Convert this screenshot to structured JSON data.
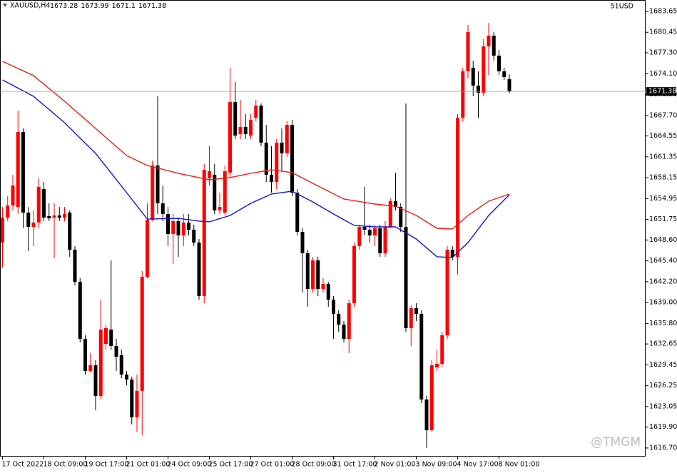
{
  "chart_data": {
    "type": "candlestick",
    "symbol": "XAUUSD,H4",
    "header_right": "51USD",
    "watermark": "@TMGM",
    "bull_color": "#ff0000",
    "bear_color": "#000000",
    "ylim": [
      1615.38,
      1685.4
    ],
    "yticks": [
      1683.65,
      1680.45,
      {
        "value": 1677.3,
        "label": "1677.30"
      },
      {
        "value": 1674.1,
        "label": "1674.10"
      },
      {
        "value": 1670.9,
        "label": "1670.90"
      },
      {
        "value": 1667.7,
        "label": "1667.70"
      },
      1664.55,
      1661.35,
      1658.15,
      1654.95,
      1651.75,
      {
        "value": 1648.6,
        "label": "1648.60"
      },
      {
        "value": 1645.4,
        "label": "1645.40"
      },
      {
        "value": 1642.2,
        "label": "1642.20"
      },
      {
        "value": 1639,
        "label": "1639.00"
      },
      {
        "value": 1635.8,
        "label": "1635.80"
      },
      1632.65,
      1629.45,
      1626.25,
      1623.05,
      {
        "value": 1619.9,
        "label": "1619.90"
      },
      {
        "value": 1616.7,
        "label": "1616.70"
      }
    ],
    "xticks": [
      {
        "value": 0,
        "label": "17 Oct 2022"
      },
      {
        "value": 8,
        "label": "18 Oct 09:00"
      },
      {
        "value": 16,
        "label": "19 Oct 17:00"
      },
      {
        "value": 24,
        "label": "21 Oct 01:00"
      },
      {
        "value": 32,
        "label": "24 Oct 09:00"
      },
      {
        "value": 40,
        "label": "25 Oct 17:00"
      },
      {
        "value": 48,
        "label": "27 Oct 01:00"
      },
      {
        "value": 56,
        "label": "28 Oct 09:00"
      },
      {
        "value": 64,
        "label": "31 Oct 17:00"
      },
      {
        "value": 72,
        "label": "2 Nov 01:00"
      },
      {
        "value": 80,
        "label": "3 Nov 09:00"
      },
      {
        "value": 88,
        "label": "4 Nov 17:00"
      },
      {
        "value": 96,
        "label": "8 Nov 01:00"
      }
    ],
    "open": [
      1648.2,
      1652.03,
      1653.89,
      1653.67,
      1665.16,
      1652.8,
      1650.61,
      1651.27,
      1656.41,
      1652.25,
      1652.03,
      1652.36,
      1652.03,
      1652.8,
      1647.11,
      1642.19,
      1633.43,
      1628.51,
      1629.39,
      1624.68,
      1632.67,
      1634.86,
      1632.34,
      1630.92,
      1627.96,
      1627.2,
      1621.4,
      1625.45,
      1642.95,
      1651.7,
      1660.02,
      1654.22,
      1652.58,
      1649.52,
      1651.49,
      1649.3,
      1651.27,
      1650.17,
      1648.2,
      1640.0,
      1658.05,
      1658.6,
      1653.13,
      1652.8,
      1658.93,
      1669.76,
      1664.83,
      1665.93,
      1664.61,
      1667.35,
      1669.21,
      1663.52,
      1658.6,
      1657.5,
      1663.52,
      1661.88,
      1666.25,
      1655.86,
      1649.84,
      1646.56,
      1641.09,
      1645.47,
      1641.09,
      1641.86,
      1639.45,
      1637.26,
      1635.62,
      1633.43,
      1638.9,
      1647.66,
      1650.61,
      1650.17,
      1649.3,
      1650.39,
      1646.56,
      1650.61,
      1654.55,
      1653.67,
      1650.61,
      1635.08,
      1638.14,
      1637.26,
      1624.14,
      1619.43,
      1629.06,
      1629.61,
      1633.98,
      1647.11,
      1646.02,
      1667.35,
      1674.46,
      1675.01,
      1672.27,
      1671.18,
      1678.29,
      1679.93,
      1676.87,
      1674.46,
      1673.28
    ],
    "high": [
      1653.67,
      1655.31,
      1658.6,
      1668.44,
      1665.71,
      1653.67,
      1653.13,
      1658.05,
      1657.5,
      1654.22,
      1654.22,
      1653.67,
      1653.67,
      1653.13,
      1647.66,
      1642.73,
      1633.98,
      1631.25,
      1630.15,
      1639.45,
      1635.62,
      1645.47,
      1633.43,
      1631.79,
      1628.51,
      1627.64,
      1627.96,
      1643.83,
      1654.22,
      1660.78,
      1670.63,
      1656.96,
      1653.67,
      1652.58,
      1652.03,
      1652.58,
      1652.58,
      1650.94,
      1648.75,
      1660.24,
      1662.97,
      1660.24,
      1655.86,
      1660.02,
      1675.01,
      1672.82,
      1670.08,
      1667.9,
      1667.9,
      1670.08,
      1669.54,
      1666.25,
      1662.97,
      1664.07,
      1665.71,
      1666.8,
      1667.02,
      1656.41,
      1650.39,
      1647.11,
      1646.02,
      1646.02,
      1642.73,
      1642.19,
      1640.0,
      1637.81,
      1636.17,
      1639.45,
      1648.2,
      1650.94,
      1656.74,
      1650.94,
      1650.94,
      1650.94,
      1651.49,
      1654.99,
      1658.93,
      1654.22,
      1669.54,
      1638.58,
      1638.9,
      1637.81,
      1624.68,
      1630.15,
      1631.79,
      1634.53,
      1647.66,
      1647.66,
      1667.9,
      1675.01,
      1681.57,
      1676.1,
      1674.46,
      1679.38,
      1681.9,
      1680.48,
      1677.74,
      1675.01,
      1673.99
    ],
    "low": [
      1644.37,
      1651.49,
      1653.13,
      1652.58,
      1650.39,
      1646.89,
      1647.66,
      1650.39,
      1651.49,
      1651.49,
      1645.8,
      1651.49,
      1651.49,
      1646.02,
      1641.64,
      1632.89,
      1627.96,
      1628.29,
      1622.49,
      1624.14,
      1631.79,
      1631.79,
      1628.51,
      1627.42,
      1626.32,
      1620.31,
      1619.21,
      1618.67,
      1642.73,
      1651.49,
      1652.58,
      1651.49,
      1647.66,
      1644.92,
      1646.02,
      1647.66,
      1649.3,
      1647.66,
      1639.45,
      1638.9,
      1656.96,
      1652.58,
      1652.58,
      1652.36,
      1658.05,
      1664.07,
      1664.07,
      1664.07,
      1664.07,
      1666.8,
      1662.97,
      1657.5,
      1655.86,
      1656.41,
      1659.14,
      1661.33,
      1655.31,
      1649.3,
      1640.55,
      1638.36,
      1640.55,
      1640.0,
      1640.55,
      1638.36,
      1633.43,
      1634.53,
      1632.89,
      1631.25,
      1638.36,
      1647.11,
      1649.3,
      1648.2,
      1647.66,
      1646.02,
      1646.02,
      1650.39,
      1653.13,
      1649.84,
      1634.53,
      1632.34,
      1636.17,
      1623.59,
      1616.7,
      1619.21,
      1628.51,
      1629.06,
      1633.43,
      1645.47,
      1643.28,
      1666.8,
      1673.37,
      1670.63,
      1667.35,
      1670.63,
      1673.91,
      1676.1,
      1673.91,
      1673.15,
      1671.1
    ],
    "close": [
      1652.03,
      1653.89,
      1656.96,
      1665.16,
      1652.8,
      1650.61,
      1651.27,
      1656.74,
      1652.03,
      1651.92,
      1652.36,
      1652.03,
      1652.58,
      1647.11,
      1642.19,
      1633.43,
      1628.51,
      1629.39,
      1624.68,
      1634.86,
      1635.08,
      1632.34,
      1630.7,
      1627.96,
      1627.2,
      1621.4,
      1625.45,
      1642.95,
      1651.7,
      1660.02,
      1654.22,
      1652.58,
      1649.52,
      1651.49,
      1649.3,
      1651.27,
      1650.17,
      1648.2,
      1640.0,
      1659.36,
      1659.14,
      1653.13,
      1653.67,
      1659.14,
      1669.76,
      1664.61,
      1665.93,
      1664.83,
      1667.02,
      1669.21,
      1663.52,
      1658.6,
      1657.5,
      1663.52,
      1661.88,
      1666.25,
      1655.86,
      1649.84,
      1646.56,
      1641.09,
      1645.47,
      1641.09,
      1641.86,
      1639.45,
      1637.26,
      1635.62,
      1633.43,
      1638.9,
      1647.66,
      1650.61,
      1650.17,
      1649.3,
      1650.39,
      1646.56,
      1650.61,
      1654.55,
      1653.67,
      1650.61,
      1635.08,
      1638.14,
      1637.26,
      1624.14,
      1619.43,
      1629.39,
      1629.61,
      1633.98,
      1647.11,
      1646.02,
      1667.35,
      1674.46,
      1680.48,
      1672.27,
      1671.18,
      1678.29,
      1679.93,
      1676.87,
      1674.46,
      1673.58,
      1671.38
    ],
    "series": [
      {
        "color": "#e8201a",
        "x": [
          0,
          6,
          12,
          18,
          24,
          28,
          34,
          40,
          44,
          48,
          52,
          56,
          60,
          66,
          72,
          76,
          80,
          84,
          87,
          90,
          94,
          98
        ],
        "values": [
          1675.99,
          1673.8,
          1669.87,
          1665.71,
          1661.55,
          1660.02,
          1658.82,
          1657.83,
          1658.16,
          1658.82,
          1659.36,
          1658.93,
          1657.28,
          1654.88,
          1654.11,
          1653.78,
          1652.36,
          1650.39,
          1650.28,
          1652.36,
          1654.55,
          1655.64
        ]
      },
      {
        "color": "#1414c8",
        "x": [
          0,
          6,
          12,
          18,
          24,
          28,
          34,
          38,
          40,
          44,
          48,
          52,
          56,
          60,
          64,
          68,
          72,
          76,
          80,
          84,
          87,
          90,
          94,
          98
        ],
        "values": [
          1673.15,
          1670.63,
          1666.58,
          1661.88,
          1655.86,
          1651.81,
          1651.92,
          1651.49,
          1651.38,
          1652.36,
          1654.22,
          1655.64,
          1656.08,
          1654.44,
          1652.58,
          1650.83,
          1650.61,
          1650.61,
          1648.75,
          1646.02,
          1645.91,
          1648.2,
          1652.36,
          1655.53
        ]
      }
    ]
  }
}
